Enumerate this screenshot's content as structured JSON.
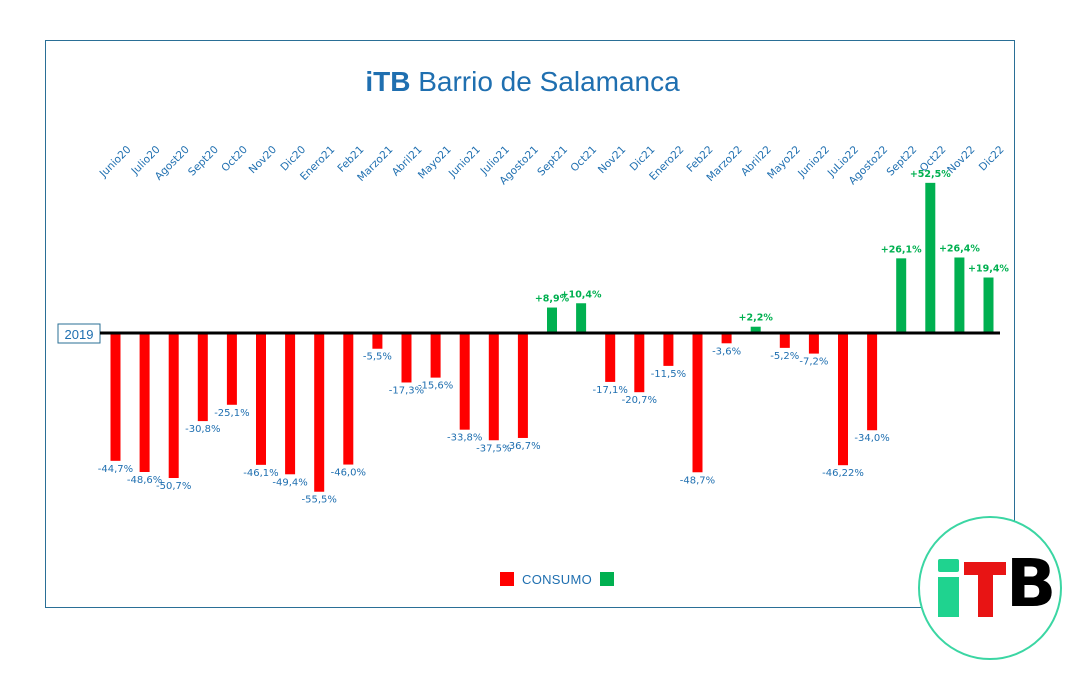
{
  "title": {
    "brand": "iTB",
    "rest": " Barrio de Salamanca"
  },
  "chart_data": {
    "type": "bar",
    "baseline_label": "2019",
    "categories": [
      "Junio20",
      "Julio20",
      "Agost20",
      "Sept20",
      "Oct20",
      "Nov20",
      "Dic20",
      "Enero21",
      "Feb21",
      "Marzo21",
      "Abril21",
      "Mayo21",
      "Junio21",
      "Julio21",
      "Agosto21",
      "Sept21",
      "Oct21",
      "Nov21",
      "Dic21",
      "Enero22",
      "Feb22",
      "Marzo22",
      "Abril22",
      "Mayo22",
      "Junio22",
      "JuLio22",
      "Agosto22",
      "Sept22",
      "Oct22",
      "Nov22",
      "Dic22"
    ],
    "values": [
      -44.7,
      -48.6,
      -50.7,
      -30.8,
      -25.1,
      -46.1,
      -49.4,
      -55.5,
      -46.0,
      -5.5,
      -17.3,
      -15.6,
      -33.8,
      -37.5,
      -36.7,
      8.9,
      10.4,
      -17.1,
      -20.7,
      -11.5,
      -48.7,
      -3.6,
      2.2,
      -5.2,
      -7.2,
      -46.22,
      -34.0,
      26.1,
      52.5,
      26.4,
      19.4
    ],
    "labels": [
      "-44,7%",
      "-48,6%",
      "-50,7%",
      "-30,8%",
      "-25,1%",
      "-46,1%",
      "-49,4%",
      "-55,5%",
      "-46,0%",
      "-5,5%",
      "-17,3%",
      "-15,6%",
      "-33,8%",
      "-37,5%",
      "-36,7%",
      "+8,9%",
      "+10,4%",
      "-17,1%",
      "-20,7%",
      "-11,5%",
      "-48,7%",
      "-3,6%",
      "+2,2%",
      "-5,2%",
      "-7,2%",
      "-46,22%",
      "-34,0%",
      "+26,1%",
      "+52,5%",
      "+26,4%",
      "+19,4%"
    ],
    "legend": {
      "label": "CONSUMO"
    },
    "colors": {
      "negative": "#ff0000",
      "positive": "#00b050",
      "negative_text": "#1f6fb0",
      "positive_text": "#00b050",
      "axis": "#000000",
      "category_text": "#1f6fb0"
    }
  }
}
